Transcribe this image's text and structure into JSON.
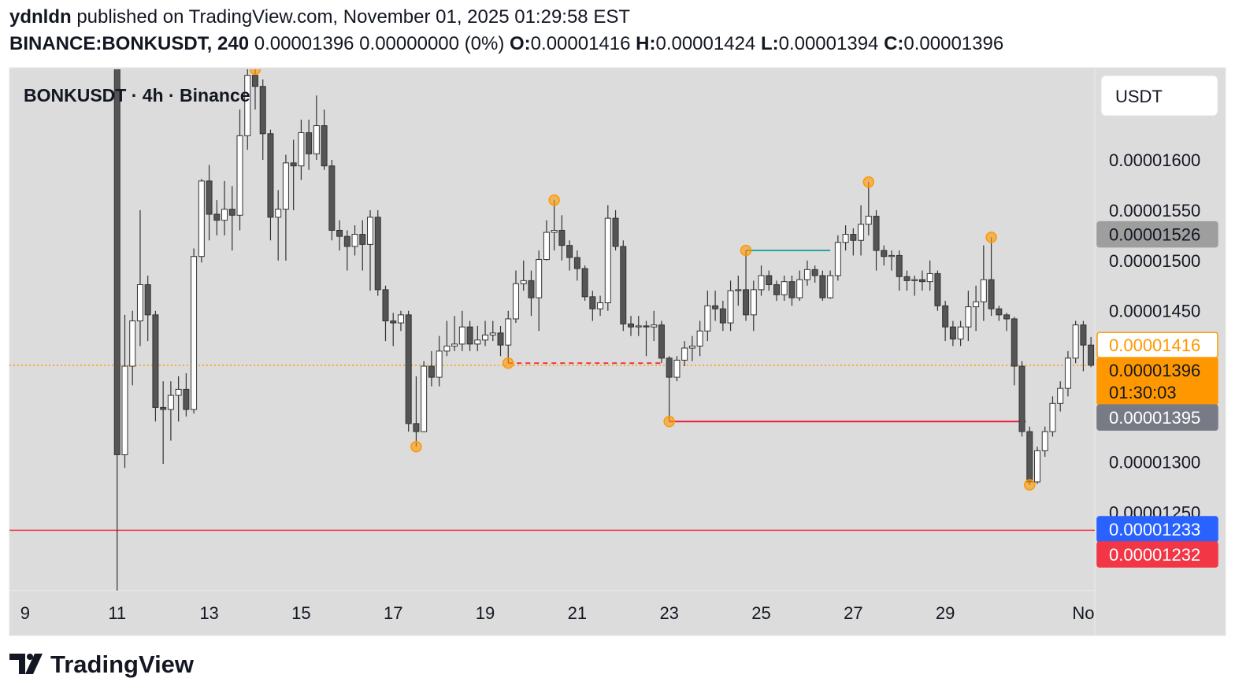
{
  "header": {
    "author": "ydnldn",
    "published": "published on TradingView.com, November 01, 2025 01:29:58 EST",
    "symbol": "BINANCE:BONKUSDT, 240",
    "change": "0.00001396 0.00000000 (0%)",
    "ohlc": [
      {
        "key": "O:",
        "value": "0.00001416"
      },
      {
        "key": "H:",
        "value": "0.00001424"
      },
      {
        "key": "L:",
        "value": "0.00001394"
      },
      {
        "key": "C:",
        "value": "0.00001396"
      }
    ]
  },
  "chart_data": {
    "type": "candlestick",
    "title": "BONKUSDT · 4h · Binance",
    "currency": "USDT",
    "up_color": "#ffffff",
    "down_color": "#555555",
    "border_color": "#333333",
    "x": [
      11,
      11.1667,
      11.3333,
      11.5,
      11.6667,
      11.8333,
      12,
      12.1667,
      12.3333,
      12.5,
      12.6667,
      12.8333,
      13,
      13.1667,
      13.3333,
      13.5,
      13.6667,
      13.8333,
      14,
      14.1667,
      14.3333,
      14.5,
      14.6667,
      14.8333,
      15,
      15.1667,
      15.3333,
      15.5,
      15.6667,
      15.8333,
      16,
      16.1667,
      16.3333,
      16.5,
      16.6667,
      16.8333,
      17,
      17.1667,
      17.3333,
      17.5,
      17.6667,
      17.8333,
      18,
      18.1667,
      18.3333,
      18.5,
      18.6667,
      18.8333,
      19,
      19.1667,
      19.3333,
      19.5,
      19.6667,
      19.8333,
      20,
      20.1667,
      20.3333,
      20.5,
      20.6667,
      20.8333,
      21,
      21.1667,
      21.3333,
      21.5,
      21.6667,
      21.8333,
      22,
      22.1667,
      22.3333,
      22.5,
      22.6667,
      22.8333,
      23,
      23.1667,
      23.3333,
      23.5,
      23.6667,
      23.8333,
      24,
      24.1667,
      24.3333,
      24.5,
      24.6667,
      24.8333,
      25,
      25.1667,
      25.3333,
      25.5,
      25.6667,
      25.8333,
      26,
      26.1667,
      26.3333,
      26.5,
      26.6667,
      26.8333,
      27,
      27.1667,
      27.3333,
      27.5,
      27.6667,
      27.8333,
      28,
      28.1667,
      28.3333,
      28.5,
      28.6667,
      28.8333,
      29,
      29.1667,
      29.3333,
      29.5,
      29.6667,
      29.8333,
      30,
      30.1667,
      30.3333,
      30.5,
      30.6667,
      30.8333,
      31,
      31.1667,
      31.3333,
      31.5,
      31.6667,
      31.8333,
      32,
      32.1667
    ],
    "open": [
      1.7e-05,
      1.307e-05,
      1.395e-05,
      1.44e-05,
      1.476e-05,
      1.446e-05,
      1.354e-05,
      1.352e-05,
      1.366e-05,
      1.372e-05,
      1.352e-05,
      1.504e-05,
      1.579e-05,
      1.546e-05,
      1.54e-05,
      1.551e-05,
      1.545e-05,
      1.624e-05,
      1.684e-05,
      1.673e-05,
      1.626e-05,
      1.543e-05,
      1.551e-05,
      1.597e-05,
      1.594e-05,
      1.627e-05,
      1.606e-05,
      1.634e-05,
      1.594e-05,
      1.53e-05,
      1.524e-05,
      1.514e-05,
      1.526e-05,
      1.516e-05,
      1.543e-05,
      1.471e-05,
      1.44e-05,
      1.438e-05,
      1.446e-05,
      1.338e-05,
      1.33e-05,
      1.395e-05,
      1.384e-05,
      1.41e-05,
      1.415e-05,
      1.417e-05,
      1.434e-05,
      1.417e-05,
      1.421e-05,
      1.426e-05,
      1.428e-05,
      1.416e-05,
      1.442e-05,
      1.477e-05,
      1.48e-05,
      1.463e-05,
      1.501e-05,
      1.528e-05,
      1.53e-05,
      1.515e-05,
      1.503e-05,
      1.492e-05,
      1.464e-05,
      1.452e-05,
      1.458e-05,
      1.542e-05,
      1.514e-05,
      1.437e-05,
      1.434e-05,
      1.435e-05,
      1.434e-05,
      1.436e-05,
      1.403e-05,
      1.384e-05,
      1.401e-05,
      1.413e-05,
      1.415e-05,
      1.43e-05,
      1.455e-05,
      1.452e-05,
      1.438e-05,
      1.47e-05,
      1.471e-05,
      1.446e-05,
      1.471e-05,
      1.485e-05,
      1.476e-05,
      1.466e-05,
      1.479e-05,
      1.463e-05,
      1.481e-05,
      1.491e-05,
      1.485e-05,
      1.463e-05,
      1.485e-05,
      1.518e-05,
      1.526e-05,
      1.52e-05,
      1.536e-05,
      1.544e-05,
      1.51e-05,
      1.504e-05,
      1.505e-05,
      1.484e-05,
      1.48e-05,
      1.481e-05,
      1.479e-05,
      1.487e-05,
      1.455e-05,
      1.434e-05,
      1.422e-05,
      1.434e-05,
      1.454e-05,
      1.459e-05,
      1.481e-05,
      1.452e-05,
      1.446e-05,
      1.442e-05,
      1.395e-05,
      1.33e-05,
      1.28e-05,
      1.311e-05,
      1.33e-05,
      1.358e-05,
      1.373e-05,
      1.403e-05,
      1.436e-05,
      1.416e-05
    ],
    "high": [
      1.71e-05,
      1.446e-05,
      1.45e-05,
      1.55e-05,
      1.485e-05,
      1.45e-05,
      1.38e-05,
      1.38e-05,
      1.385e-05,
      1.388e-05,
      1.512e-05,
      1.581e-05,
      1.595e-05,
      1.56e-05,
      1.579e-05,
      1.574e-05,
      1.65e-05,
      1.695e-05,
      1.69e-05,
      1.68e-05,
      1.63e-05,
      1.57e-05,
      1.605e-05,
      1.62e-05,
      1.64e-05,
      1.64e-05,
      1.664e-05,
      1.65e-05,
      1.6e-05,
      1.54e-05,
      1.53e-05,
      1.535e-05,
      1.54e-05,
      1.55e-05,
      1.55e-05,
      1.475e-05,
      1.448e-05,
      1.45e-05,
      1.45e-05,
      1.385e-05,
      1.4e-05,
      1.41e-05,
      1.425e-05,
      1.44e-05,
      1.445e-05,
      1.45e-05,
      1.44e-05,
      1.435e-05,
      1.44e-05,
      1.44e-05,
      1.435e-05,
      1.45e-05,
      1.49e-05,
      1.5e-05,
      1.49e-05,
      1.51e-05,
      1.54e-05,
      1.56e-05,
      1.545e-05,
      1.52e-05,
      1.51e-05,
      1.495e-05,
      1.47e-05,
      1.465e-05,
      1.555e-05,
      1.55e-05,
      1.52e-05,
      1.445e-05,
      1.445e-05,
      1.44e-05,
      1.45e-05,
      1.44e-05,
      1.405e-05,
      1.405e-05,
      1.42e-05,
      1.425e-05,
      1.44e-05,
      1.47e-05,
      1.47e-05,
      1.46e-05,
      1.48e-05,
      1.485e-05,
      1.51e-05,
      1.48e-05,
      1.495e-05,
      1.49e-05,
      1.48e-05,
      1.485e-05,
      1.485e-05,
      1.49e-05,
      1.5e-05,
      1.495e-05,
      1.49e-05,
      1.49e-05,
      1.525e-05,
      1.535e-05,
      1.532e-05,
      1.555e-05,
      1.578e-05,
      1.55e-05,
      1.515e-05,
      1.51e-05,
      1.51e-05,
      1.49e-05,
      1.485e-05,
      1.49e-05,
      1.5e-05,
      1.49e-05,
      1.46e-05,
      1.44e-05,
      1.44e-05,
      1.47e-05,
      1.475e-05,
      1.515e-05,
      1.523e-05,
      1.455e-05,
      1.448e-05,
      1.444e-05,
      1.4e-05,
      1.335e-05,
      1.315e-05,
      1.335e-05,
      1.365e-05,
      1.38e-05,
      1.41e-05,
      1.44e-05,
      1.44e-05,
      1.424e-05
    ],
    "low": [
      1.172e-05,
      1.294e-05,
      1.376e-05,
      1.415e-05,
      1.42e-05,
      1.34e-05,
      1.298e-05,
      1.321e-05,
      1.34e-05,
      1.345e-05,
      1.348e-05,
      1.498e-05,
      1.52e-05,
      1.525e-05,
      1.525e-05,
      1.51e-05,
      1.53e-05,
      1.61e-05,
      1.65e-05,
      1.6e-05,
      1.52e-05,
      1.5e-05,
      1.5e-05,
      1.55e-05,
      1.58e-05,
      1.59e-05,
      1.6e-05,
      1.59e-05,
      1.52e-05,
      1.51e-05,
      1.49e-05,
      1.505e-05,
      1.49e-05,
      1.47e-05,
      1.465e-05,
      1.42e-05,
      1.415e-05,
      1.43e-05,
      1.33e-05,
      1.315e-05,
      1.33e-05,
      1.375e-05,
      1.375e-05,
      1.405e-05,
      1.41e-05,
      1.41e-05,
      1.41e-05,
      1.41e-05,
      1.415e-05,
      1.42e-05,
      1.405e-05,
      1.398e-05,
      1.438e-05,
      1.47e-05,
      1.445e-05,
      1.43e-05,
      1.5e-05,
      1.51e-05,
      1.5e-05,
      1.49e-05,
      1.48e-05,
      1.46e-05,
      1.44e-05,
      1.445e-05,
      1.45e-05,
      1.51e-05,
      1.43e-05,
      1.425e-05,
      1.425e-05,
      1.405e-05,
      1.42e-05,
      1.398e-05,
      1.34e-05,
      1.38e-05,
      1.395e-05,
      1.4e-05,
      1.405e-05,
      1.42e-05,
      1.44e-05,
      1.43e-05,
      1.43e-05,
      1.455e-05,
      1.44e-05,
      1.43e-05,
      1.465e-05,
      1.47e-05,
      1.46e-05,
      1.46e-05,
      1.455e-05,
      1.46e-05,
      1.475e-05,
      1.478e-05,
      1.46e-05,
      1.462e-05,
      1.48e-05,
      1.51e-05,
      1.505e-05,
      1.505e-05,
      1.525e-05,
      1.49e-05,
      1.495e-05,
      1.49e-05,
      1.47e-05,
      1.47e-05,
      1.465e-05,
      1.47e-05,
      1.47e-05,
      1.45e-05,
      1.42e-05,
      1.415e-05,
      1.415e-05,
      1.42e-05,
      1.43e-05,
      1.44e-05,
      1.445e-05,
      1.44e-05,
      1.43e-05,
      1.376e-05,
      1.325e-05,
      1.277e-05,
      1.278e-05,
      1.305e-05,
      1.325e-05,
      1.35e-05,
      1.365e-05,
      1.398e-05,
      1.39e-05,
      1.394e-05
    ],
    "close": [
      1.307e-05,
      1.395e-05,
      1.44e-05,
      1.476e-05,
      1.446e-05,
      1.354e-05,
      1.352e-05,
      1.366e-05,
      1.372e-05,
      1.352e-05,
      1.504e-05,
      1.579e-05,
      1.546e-05,
      1.54e-05,
      1.551e-05,
      1.545e-05,
      1.624e-05,
      1.684e-05,
      1.673e-05,
      1.626e-05,
      1.543e-05,
      1.551e-05,
      1.597e-05,
      1.594e-05,
      1.627e-05,
      1.606e-05,
      1.634e-05,
      1.594e-05,
      1.53e-05,
      1.524e-05,
      1.514e-05,
      1.526e-05,
      1.516e-05,
      1.543e-05,
      1.471e-05,
      1.44e-05,
      1.438e-05,
      1.446e-05,
      1.338e-05,
      1.33e-05,
      1.395e-05,
      1.384e-05,
      1.41e-05,
      1.415e-05,
      1.417e-05,
      1.434e-05,
      1.417e-05,
      1.421e-05,
      1.426e-05,
      1.428e-05,
      1.416e-05,
      1.442e-05,
      1.477e-05,
      1.48e-05,
      1.463e-05,
      1.501e-05,
      1.528e-05,
      1.53e-05,
      1.515e-05,
      1.503e-05,
      1.492e-05,
      1.464e-05,
      1.452e-05,
      1.458e-05,
      1.542e-05,
      1.514e-05,
      1.437e-05,
      1.434e-05,
      1.435e-05,
      1.434e-05,
      1.436e-05,
      1.403e-05,
      1.384e-05,
      1.401e-05,
      1.413e-05,
      1.415e-05,
      1.43e-05,
      1.455e-05,
      1.452e-05,
      1.438e-05,
      1.47e-05,
      1.471e-05,
      1.446e-05,
      1.471e-05,
      1.485e-05,
      1.476e-05,
      1.466e-05,
      1.479e-05,
      1.463e-05,
      1.481e-05,
      1.491e-05,
      1.485e-05,
      1.463e-05,
      1.485e-05,
      1.518e-05,
      1.526e-05,
      1.52e-05,
      1.536e-05,
      1.544e-05,
      1.51e-05,
      1.504e-05,
      1.505e-05,
      1.484e-05,
      1.48e-05,
      1.481e-05,
      1.479e-05,
      1.487e-05,
      1.455e-05,
      1.434e-05,
      1.422e-05,
      1.434e-05,
      1.454e-05,
      1.459e-05,
      1.481e-05,
      1.452e-05,
      1.446e-05,
      1.442e-05,
      1.395e-05,
      1.33e-05,
      1.28e-05,
      1.311e-05,
      1.33e-05,
      1.358e-05,
      1.373e-05,
      1.403e-05,
      1.436e-05,
      1.416e-05,
      1.396e-05
    ],
    "xlim": [
      8.659,
      32.25
    ],
    "xticks": [
      9,
      11,
      13,
      15,
      17,
      19,
      21,
      23,
      25,
      27,
      29,
      {
        "value": 32,
        "label": "No"
      }
    ],
    "ylim": [
      1.172e-05,
      1.69e-05
    ],
    "yticks": [
      {
        "value": 1.25e-05,
        "label": "0.00001250"
      },
      {
        "value": 1.3e-05,
        "label": "0.00001300"
      },
      {
        "value": 1.45e-05,
        "label": "0.00001450"
      },
      {
        "value": 1.5e-05,
        "label": "0.00001500"
      },
      {
        "value": 1.55e-05,
        "label": "0.00001550"
      },
      {
        "value": 1.6e-05,
        "label": "0.00001600"
      }
    ],
    "price_lines": [
      {
        "value": 1.526e-05,
        "color": "#9e9e9e",
        "text_color": "#131722"
      },
      {
        "value": 1.416e-05,
        "color": "#ff9800",
        "text_color": "#ff9800",
        "outline": true
      },
      {
        "value": 1.396e-05,
        "color": "#ff9800",
        "text_color": "#131722",
        "line": "dotted",
        "countdown": "01:30:03"
      },
      {
        "value": 1.395e-05,
        "color": "#787b86",
        "text_color": "#ffffff"
      },
      {
        "value": 1.233e-05,
        "color": "#2962ff",
        "text_color": "#ffffff"
      },
      {
        "value": 1.232e-05,
        "color": "#f23645",
        "text_color": "#ffffff",
        "line": "solid"
      }
    ],
    "segments": [
      {
        "x": [
          24.6667,
          26.5
        ],
        "y": 1.51e-05,
        "color": "#26a69a"
      },
      {
        "x": [
          19.5,
          22.8333
        ],
        "y": 1.398e-05,
        "color": "#f23645",
        "dashed": true
      },
      {
        "x": [
          23,
          30.75
        ],
        "y": 1.34e-05,
        "color": "#e91e43"
      }
    ],
    "markers": [
      {
        "x": 14,
        "y": 1.69e-05
      },
      {
        "x": 17.5,
        "y": 1.315e-05
      },
      {
        "x": 19.5,
        "y": 1.398e-05
      },
      {
        "x": 20.5,
        "y": 1.56e-05
      },
      {
        "x": 23,
        "y": 1.34e-05
      },
      {
        "x": 24.6667,
        "y": 1.51e-05
      },
      {
        "x": 27.3333,
        "y": 1.578e-05
      },
      {
        "x": 30,
        "y": 1.523e-05
      },
      {
        "x": 30.8333,
        "y": 1.277e-05
      }
    ],
    "marker_color": "#ff9800"
  },
  "footer": {
    "brand": "TradingView"
  }
}
